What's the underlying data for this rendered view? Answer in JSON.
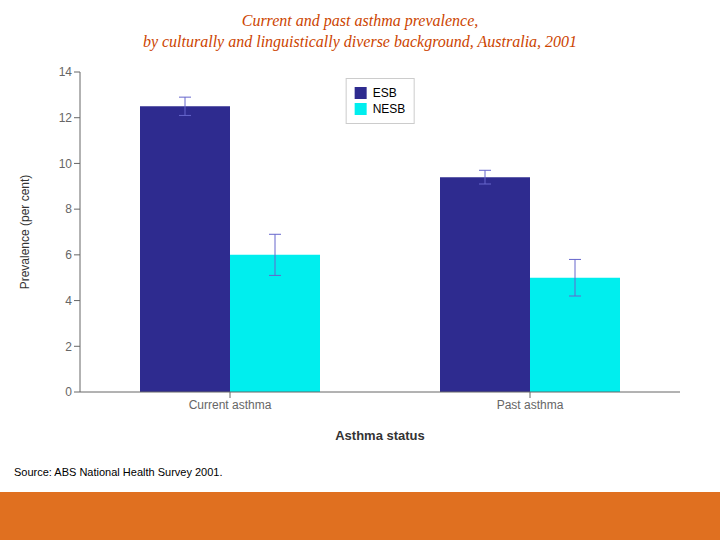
{
  "chart_data": {
    "type": "bar",
    "title": "Current and past asthma prevalence,\nby culturally and linguistically diverse background, Australia, 2001",
    "categories": [
      "Current asthma",
      "Past asthma"
    ],
    "series": [
      {
        "name": "ESB",
        "color": "#2e2b8f",
        "values": [
          12.5,
          9.4
        ],
        "errors": [
          0.4,
          0.3
        ]
      },
      {
        "name": "NESB",
        "color": "#00eeee",
        "values": [
          6.0,
          5.0
        ],
        "errors": [
          0.9,
          0.8
        ]
      }
    ],
    "xlabel": "Asthma status",
    "ylabel": "Prevalence (per cent)",
    "ylim": [
      0,
      14
    ],
    "yticks": [
      0,
      2,
      4,
      6,
      8,
      10,
      12,
      14
    ],
    "grid": false,
    "legend": "upper center",
    "annotations": [
      "Source: ABS National Health Survey 2001."
    ]
  }
}
